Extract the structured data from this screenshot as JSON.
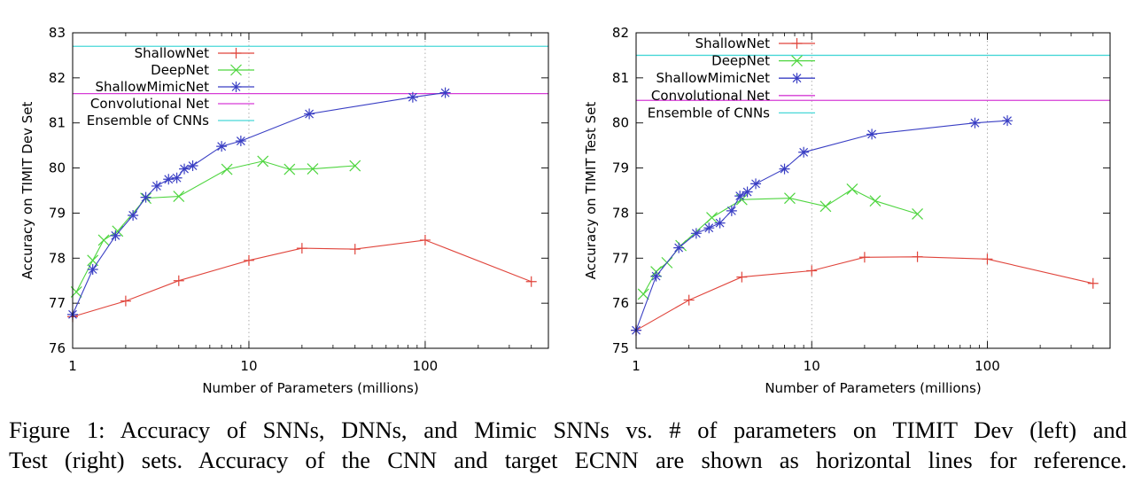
{
  "chart_data": [
    {
      "type": "line",
      "x_scale": "log",
      "xlabel": "Number of Parameters (millions)",
      "ylabel": "Accuracy on TIMIT Dev Set",
      "xlim": [
        1,
        500
      ],
      "ylim": [
        76,
        83
      ],
      "xticks": [
        1,
        10,
        100
      ],
      "xtick_labels": [
        "1",
        "10",
        "100"
      ],
      "yticks": [
        76,
        77,
        78,
        79,
        80,
        81,
        82,
        83
      ],
      "grid": true,
      "legend_position": "top-left",
      "series": [
        {
          "name": "ShallowNet",
          "color": "#e0453c",
          "marker": "plus",
          "x": [
            1,
            2,
            4,
            10,
            20,
            40,
            100,
            400
          ],
          "y": [
            76.7,
            77.05,
            77.5,
            77.95,
            78.22,
            78.2,
            78.4,
            77.48
          ]
        },
        {
          "name": "DeepNet",
          "color": "#4ed53f",
          "marker": "cross",
          "x": [
            1.05,
            1.3,
            1.5,
            1.8,
            2.6,
            4,
            7.5,
            12,
            17,
            23,
            40
          ],
          "y": [
            77.25,
            77.95,
            78.4,
            78.6,
            79.33,
            79.37,
            79.97,
            80.15,
            79.97,
            79.98,
            80.05
          ]
        },
        {
          "name": "ShallowMimicNet",
          "color": "#3a3fc4",
          "marker": "star",
          "x": [
            1,
            1.3,
            1.75,
            2.2,
            2.6,
            3.0,
            3.5,
            3.9,
            4.3,
            4.8,
            7.0,
            9.0,
            22,
            85,
            130
          ],
          "y": [
            76.75,
            77.75,
            78.5,
            78.95,
            79.35,
            79.6,
            79.75,
            79.78,
            79.98,
            80.05,
            80.48,
            80.6,
            81.2,
            81.57,
            81.67
          ]
        },
        {
          "name": "Convolutional Net",
          "color": "#d63bd6",
          "marker": "none",
          "hline": 81.65
        },
        {
          "name": "Ensemble of CNNs",
          "color": "#48d8d8",
          "marker": "none",
          "hline": 82.7
        }
      ]
    },
    {
      "type": "line",
      "x_scale": "log",
      "xlabel": "Number of Parameters (millions)",
      "ylabel": "Accuracy on TIMIT Test Set",
      "xlim": [
        1,
        500
      ],
      "ylim": [
        75,
        82
      ],
      "xticks": [
        1,
        10,
        100
      ],
      "xtick_labels": [
        "1",
        "10",
        "100"
      ],
      "yticks": [
        75,
        76,
        77,
        78,
        79,
        80,
        81,
        82
      ],
      "grid": true,
      "legend_position": "top-left",
      "series": [
        {
          "name": "ShallowNet",
          "color": "#e0453c",
          "marker": "plus",
          "x": [
            1,
            2,
            4,
            10,
            20,
            40,
            100,
            400
          ],
          "y": [
            75.4,
            76.07,
            76.58,
            76.72,
            77.02,
            77.03,
            76.98,
            76.44
          ]
        },
        {
          "name": "DeepNet",
          "color": "#4ed53f",
          "marker": "cross",
          "x": [
            1.1,
            1.3,
            1.5,
            1.8,
            2.7,
            4,
            7.5,
            12,
            17,
            23,
            40
          ],
          "y": [
            76.2,
            76.7,
            76.9,
            77.28,
            77.9,
            78.3,
            78.33,
            78.15,
            78.53,
            78.27,
            77.98
          ]
        },
        {
          "name": "ShallowMimicNet",
          "color": "#3a3fc4",
          "marker": "star",
          "x": [
            1,
            1.3,
            1.75,
            2.2,
            2.6,
            3.0,
            3.5,
            3.9,
            4.3,
            4.8,
            7.0,
            9.0,
            22,
            85,
            130
          ],
          "y": [
            75.4,
            76.6,
            77.23,
            77.55,
            77.67,
            77.78,
            78.05,
            78.38,
            78.47,
            78.65,
            78.98,
            79.35,
            79.75,
            80.0,
            80.05
          ]
        },
        {
          "name": "Convolutional Net",
          "color": "#d63bd6",
          "marker": "none",
          "hline": 80.5
        },
        {
          "name": "Ensemble of CNNs",
          "color": "#48d8d8",
          "marker": "none",
          "hline": 81.5
        }
      ]
    }
  ],
  "caption": {
    "line1": "Figure 1: Accuracy of SNNs, DNNs, and Mimic SNNs vs. # of parameters on TIMIT Dev (left) and",
    "line2": "Test (right) sets. Accuracy of the CNN and target ECNN are shown as horizontal lines for reference."
  }
}
